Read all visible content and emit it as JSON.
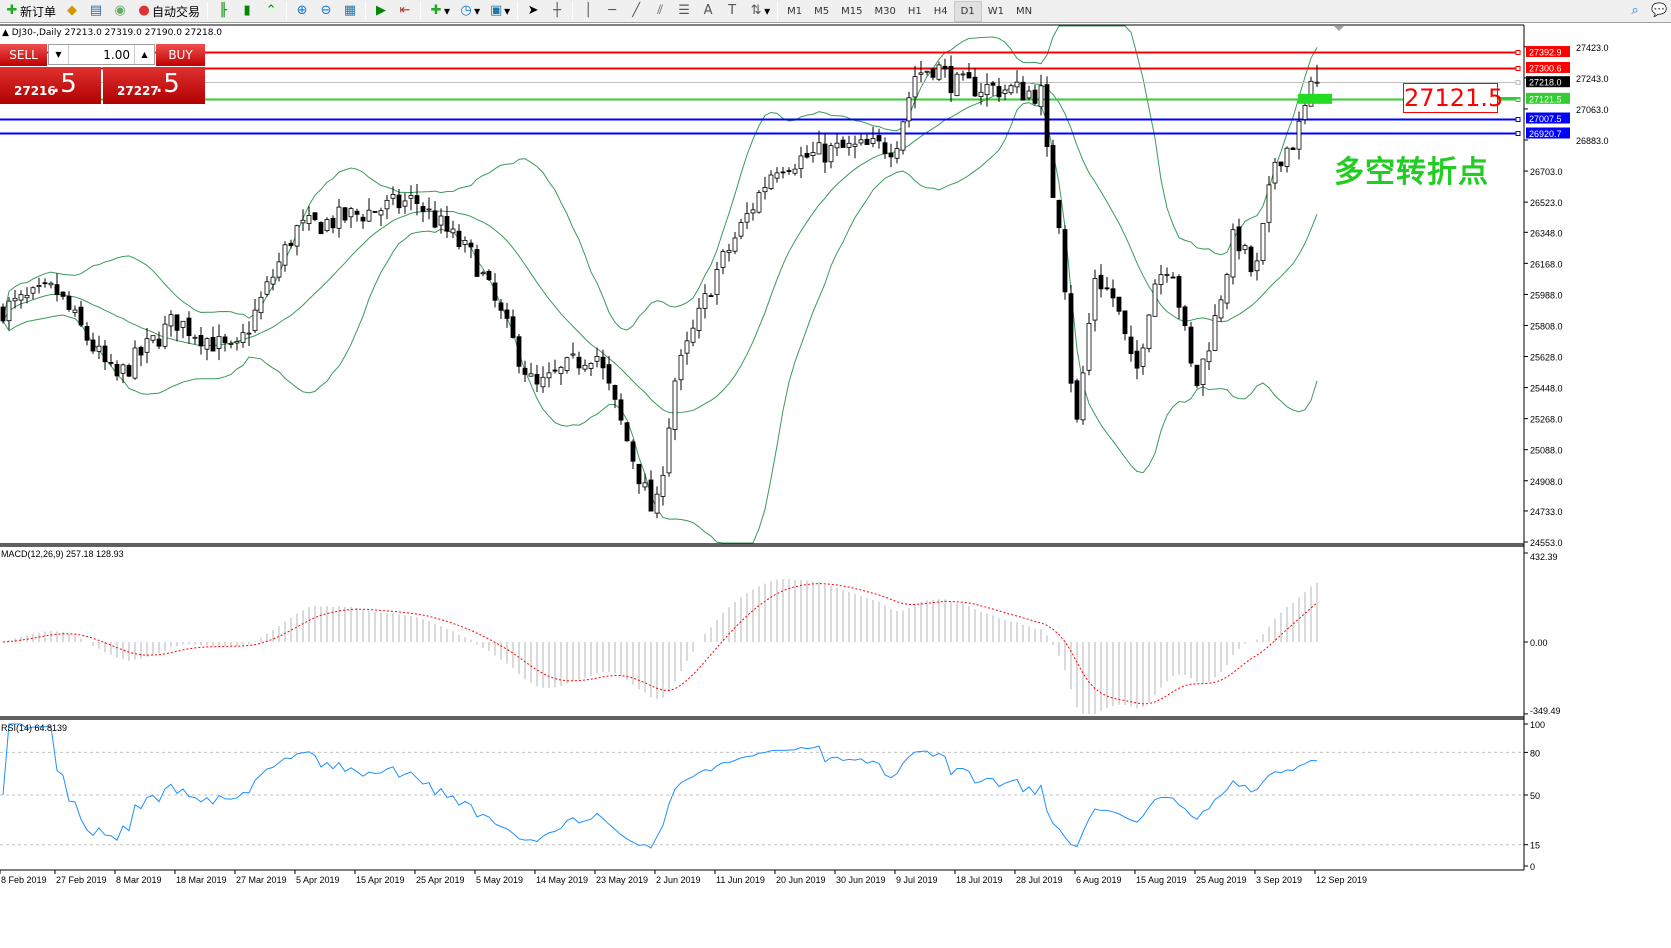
{
  "toolbar": {
    "new_order": "新订单",
    "auto_trading": "自动交易",
    "timeframes": [
      "M1",
      "M5",
      "M15",
      "M30",
      "H1",
      "H4",
      "D1",
      "W1",
      "MN"
    ],
    "active_timeframe": "D1",
    "icons": [
      "new-order-icon",
      "experts-icon",
      "history-center-icon",
      "signals-icon",
      "auto-trading-icon",
      "bar-chart-icon",
      "candlestick-icon",
      "line-chart-icon",
      "zoom-in-icon",
      "zoom-out-icon",
      "tile-windows-icon",
      "autoscroll-icon",
      "chart-shift-icon",
      "indicators-icon",
      "periods-icon",
      "templates-icon",
      "cursor-icon",
      "crosshair-icon",
      "vertical-line-icon",
      "horizontal-line-icon",
      "trendline-icon",
      "equidistant-channel-icon",
      "fibonacci-icon",
      "text-icon",
      "text-label-icon",
      "arrows-icon",
      "search-icon",
      "chat-icon"
    ]
  },
  "chart_title": "DJ30-,Daily  27213.0 27319.0 27190.0 27218.0",
  "trade_panel": {
    "sell_label": "SELL",
    "buy_label": "BUY",
    "volume": "1.00",
    "sell_price_main": "27216",
    "sell_price_frac": ".5",
    "buy_price_main": "27227",
    "buy_price_frac": ".5"
  },
  "annotation": {
    "price_box": "27121.5",
    "text": "多空转折点",
    "text_color": "#22cc22",
    "box_color": "#ff0000"
  },
  "colors": {
    "bands": "#3a9a5a",
    "macd_hist": "#c0c0c0",
    "macd_signal": "#ff0000",
    "rsi": "#1e90ff",
    "up": "#ffffff",
    "down": "#000000"
  },
  "chart_data": [
    {
      "type": "candlestick",
      "symbol": "DJ30-",
      "period": "Daily",
      "ylim": [
        24553.0,
        27423.0
      ],
      "price_ticks": [
        "27423.0",
        "27243.0",
        "27063.0",
        "26883.0",
        "26703.0",
        "26523.0",
        "26348.0",
        "26168.0",
        "25988.0",
        "25808.0",
        "25628.0",
        "25448.0",
        "25268.0",
        "25088.0",
        "24908.0",
        "24733.0",
        "24553.0"
      ],
      "x_labels": [
        "8 Feb 2019",
        "27 Feb 2019",
        "8 Mar 2019",
        "18 Mar 2019",
        "27 Mar 2019",
        "5 Apr 2019",
        "15 Apr 2019",
        "25 Apr 2019",
        "5 May 2019",
        "14 May 2019",
        "23 May 2019",
        "2 Jun 2019",
        "11 Jun 2019",
        "20 Jun 2019",
        "30 Jun 2019",
        "9 Jul 2019",
        "18 Jul 2019",
        "28 Jul 2019",
        "6 Aug 2019",
        "15 Aug 2019",
        "25 Aug 2019",
        "3 Sep 2019",
        "12 Sep 2019"
      ],
      "approx_closes": [
        {
          "date": "8 Feb 2019",
          "close": 25898
        },
        {
          "date": "27 Feb 2019",
          "close": 26014
        },
        {
          "date": "8 Mar 2019",
          "close": 25492
        },
        {
          "date": "18 Mar 2019",
          "close": 25840
        },
        {
          "date": "27 Mar 2019",
          "close": 25637
        },
        {
          "date": "5 Apr 2019",
          "close": 26361
        },
        {
          "date": "15 Apr 2019",
          "close": 26448
        },
        {
          "date": "25 Apr 2019",
          "close": 26535
        },
        {
          "date": "5 May 2019",
          "close": 26187
        },
        {
          "date": "14 May 2019",
          "close": 25434
        },
        {
          "date": "23 May 2019",
          "close": 25666
        },
        {
          "date": "2 Jun 2019",
          "close": 24680
        },
        {
          "date": "5 Jun 2019",
          "close": 25492
        },
        {
          "date": "11 Jun 2019",
          "close": 26100
        },
        {
          "date": "20 Jun 2019",
          "close": 26738
        },
        {
          "date": "30 Jun 2019",
          "close": 26825
        },
        {
          "date": "9 Jul 2019",
          "close": 26850
        },
        {
          "date": "12 Jul 2019",
          "close": 27260
        },
        {
          "date": "15 Jul 2019",
          "close": 27318
        },
        {
          "date": "18 Jul 2019",
          "close": 27202
        },
        {
          "date": "28 Jul 2019",
          "close": 27173
        },
        {
          "date": "1 Aug 2019",
          "close": 27150
        },
        {
          "date": "2 Aug 2019",
          "close": 26700
        },
        {
          "date": "4 Aug 2019",
          "close": 26360
        },
        {
          "date": "6 Aug 2019",
          "close": 25144
        },
        {
          "date": "9 Aug 2019",
          "close": 26100
        },
        {
          "date": "12 Aug 2019",
          "close": 25956
        },
        {
          "date": "15 Aug 2019",
          "close": 25492
        },
        {
          "date": "18 Aug 2019",
          "close": 26050
        },
        {
          "date": "21 Aug 2019",
          "close": 26200
        },
        {
          "date": "25 Aug 2019",
          "close": 25434
        },
        {
          "date": "28 Aug 2019",
          "close": 25840
        },
        {
          "date": "31 Aug 2019",
          "close": 26348
        },
        {
          "date": "3 Sep 2019",
          "close": 26072
        },
        {
          "date": "6 Sep 2019",
          "close": 26767
        },
        {
          "date": "9 Sep 2019",
          "close": 26883
        },
        {
          "date": "12 Sep 2019",
          "close": 27237
        },
        {
          "date": "13 Sep 2019",
          "close": 27218
        }
      ],
      "last": {
        "open": 27213.0,
        "high": 27319.0,
        "low": 27190.0,
        "close": 27218.0
      },
      "indicators": [
        "Bollinger Bands"
      ],
      "levels": [
        {
          "price": "27392.9",
          "color": "#ff0000"
        },
        {
          "price": "27300.6",
          "color": "#ff0000"
        },
        {
          "price": "27218.0",
          "color": "#c0c0c0",
          "label_bg": "#000000"
        },
        {
          "price": "27121.5",
          "color": "#33cc33"
        },
        {
          "price": "27007.5",
          "color": "#0000ff"
        },
        {
          "price": "26920.7",
          "color": "#0000ff"
        }
      ]
    },
    {
      "type": "bar",
      "label": "MACD(12,26,9) 257.18 128.93",
      "macd": 257.18,
      "signal": 128.93,
      "ylim": [
        -349.49,
        432.39
      ],
      "ticks": [
        "432.39",
        "0.00",
        "-349.49"
      ]
    },
    {
      "type": "line",
      "label": "RSI(14) 64.8139",
      "value": 64.8139,
      "ylim": [
        0,
        100
      ],
      "ticks": [
        "100",
        "80",
        "50",
        "15",
        "0"
      ],
      "levels": [
        80,
        50,
        15
      ]
    }
  ]
}
